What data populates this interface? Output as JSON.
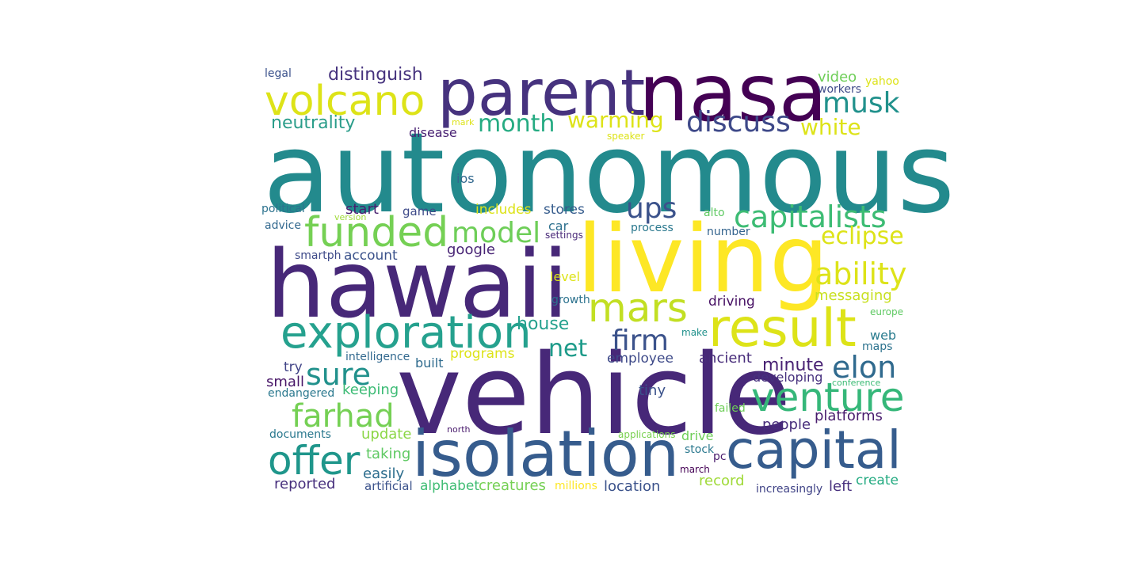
{
  "words": [
    {
      "text": "autonomous",
      "color": "#238a8d"
    },
    {
      "text": "vehicle",
      "color": "#472878"
    },
    {
      "text": "hawaii",
      "color": "#472878"
    },
    {
      "text": "living",
      "color": "#fde725"
    },
    {
      "text": "nasa",
      "color": "#440154"
    },
    {
      "text": "parent",
      "color": "#46327e"
    },
    {
      "text": "isolation",
      "color": "#365c8d"
    },
    {
      "text": "capital",
      "color": "#365c8d"
    },
    {
      "text": "result",
      "color": "#dde318"
    },
    {
      "text": "exploration",
      "color": "#25a18e"
    },
    {
      "text": "volcano",
      "color": "#dde318"
    },
    {
      "text": "funded",
      "color": "#75d054"
    },
    {
      "text": "mars",
      "color": "#c2df23"
    },
    {
      "text": "offer",
      "color": "#1f968b"
    },
    {
      "text": "venture",
      "color": "#35b779"
    },
    {
      "text": "farhad",
      "color": "#75d054"
    },
    {
      "text": "capitalists",
      "color": "#3dbc74"
    },
    {
      "text": "ability",
      "color": "#dde318"
    },
    {
      "text": "model",
      "color": "#6ece58"
    },
    {
      "text": "discuss",
      "color": "#3e4989"
    },
    {
      "text": "musk",
      "color": "#21918c"
    },
    {
      "text": "eclipse",
      "color": "#dde318"
    },
    {
      "text": "elon",
      "color": "#306a8e"
    },
    {
      "text": "sure",
      "color": "#21918c"
    },
    {
      "text": "ups",
      "color": "#3b528b"
    },
    {
      "text": "firm",
      "color": "#3b528b"
    },
    {
      "text": "net",
      "color": "#1e9b8a"
    },
    {
      "text": "month",
      "color": "#25ab82"
    },
    {
      "text": "warming",
      "color": "#dde318"
    },
    {
      "text": "white",
      "color": "#dde318"
    },
    {
      "text": "neutrality",
      "color": "#2a9d8a"
    },
    {
      "text": "distinguish",
      "color": "#46337e"
    },
    {
      "text": "house",
      "color": "#25a18e"
    },
    {
      "text": "minute",
      "color": "#482173"
    },
    {
      "text": "platforms",
      "color": "#481b6d"
    },
    {
      "text": "keeping",
      "color": "#3cbb75"
    },
    {
      "text": "people",
      "color": "#472d7b"
    },
    {
      "text": "messaging",
      "color": "#c8e020"
    },
    {
      "text": "driving",
      "color": "#471164"
    },
    {
      "text": "ancient",
      "color": "#472c7a"
    },
    {
      "text": "small",
      "color": "#481668"
    },
    {
      "text": "taking",
      "color": "#5ec962"
    },
    {
      "text": "update",
      "color": "#8bd646"
    },
    {
      "text": "easily",
      "color": "#2e6e8e"
    },
    {
      "text": "reported",
      "color": "#472f7d"
    },
    {
      "text": "creatures",
      "color": "#75d054"
    },
    {
      "text": "alphabet",
      "color": "#3fbc73"
    },
    {
      "text": "location",
      "color": "#3b528b"
    },
    {
      "text": "record",
      "color": "#a0da39"
    },
    {
      "text": "create",
      "color": "#25ab82"
    },
    {
      "text": "left",
      "color": "#472f7d"
    },
    {
      "text": "artificial",
      "color": "#3b528b"
    },
    {
      "text": "try",
      "color": "#414487"
    },
    {
      "text": "built",
      "color": "#2f6b8e"
    },
    {
      "text": "programs",
      "color": "#dde318"
    },
    {
      "text": "employee",
      "color": "#3e4a89"
    },
    {
      "text": "tiny",
      "color": "#3b528b"
    },
    {
      "text": "developing",
      "color": "#46307e"
    },
    {
      "text": "web",
      "color": "#297b8e"
    },
    {
      "text": "maps",
      "color": "#2c728e"
    },
    {
      "text": "drive",
      "color": "#6ece58"
    },
    {
      "text": "stock",
      "color": "#2a788e"
    },
    {
      "text": "pc",
      "color": "#481a6c"
    },
    {
      "text": "march",
      "color": "#440154"
    },
    {
      "text": "millions",
      "color": "#fde725"
    },
    {
      "text": "increasingly",
      "color": "#414487"
    },
    {
      "text": "account",
      "color": "#3b528b"
    },
    {
      "text": "google",
      "color": "#482475"
    },
    {
      "text": "start",
      "color": "#481f70"
    },
    {
      "text": "includes",
      "color": "#dde318"
    },
    {
      "text": "stores",
      "color": "#365c8d"
    },
    {
      "text": "car",
      "color": "#2d708e"
    },
    {
      "text": "game",
      "color": "#3e4a89"
    },
    {
      "text": "political",
      "color": "#2c728e"
    },
    {
      "text": "advice",
      "color": "#31688e"
    },
    {
      "text": "version",
      "color": "#a0da39"
    },
    {
      "text": "smartph",
      "color": "#3e4a89"
    },
    {
      "text": "settings",
      "color": "#482878"
    },
    {
      "text": "process",
      "color": "#2a788e"
    },
    {
      "text": "number",
      "color": "#33638d"
    },
    {
      "text": "alto",
      "color": "#5ec962"
    },
    {
      "text": "level",
      "color": "#dde318"
    },
    {
      "text": "growth",
      "color": "#2c728e"
    },
    {
      "text": "make",
      "color": "#21918c"
    },
    {
      "text": "europe",
      "color": "#5ec962"
    },
    {
      "text": "intelligence",
      "color": "#31688e"
    },
    {
      "text": "endangered",
      "color": "#2a788e"
    },
    {
      "text": "documents",
      "color": "#2a788e"
    },
    {
      "text": "north",
      "color": "#481a6c"
    },
    {
      "text": "applications",
      "color": "#7ad151"
    },
    {
      "text": "failed",
      "color": "#6ece58"
    },
    {
      "text": "conference",
      "color": "#3cbb75"
    },
    {
      "text": "ios",
      "color": "#31688e"
    },
    {
      "text": "disease",
      "color": "#482173"
    },
    {
      "text": "mark",
      "color": "#dde318"
    },
    {
      "text": "speaker",
      "color": "#dde318"
    },
    {
      "text": "legal",
      "color": "#3b528b"
    },
    {
      "text": "video",
      "color": "#6ece58"
    },
    {
      "text": "workers",
      "color": "#3e4a89"
    },
    {
      "text": "yahoo",
      "color": "#dde318"
    }
  ]
}
